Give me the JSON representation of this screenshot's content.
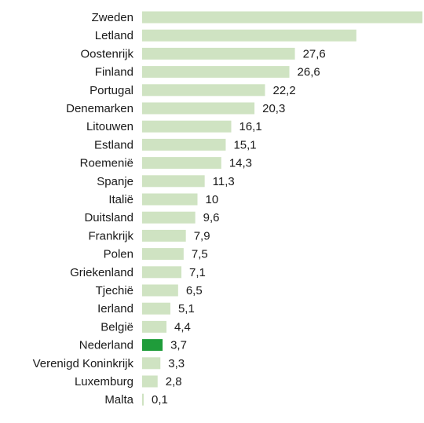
{
  "chart_data": {
    "type": "bar",
    "orientation": "horizontal",
    "categories": [
      "Zweden",
      "Letland",
      "Oostenrijk",
      "Finland",
      "Portugal",
      "Denemarken",
      "Litouwen",
      "Estland",
      "Roemenië",
      "Spanje",
      "Italië",
      "Duitsland",
      "Frankrijk",
      "Polen",
      "Griekenland",
      "Tjechië",
      "Ierland",
      "België",
      "Nederland",
      "Verenigd Koninkrijk",
      "Luxemburg",
      "Malta"
    ],
    "values": [
      52.6,
      38.7,
      27.6,
      26.6,
      22.2,
      20.3,
      16.1,
      15.1,
      14.3,
      11.3,
      10,
      9.6,
      7.9,
      7.5,
      7.1,
      6.5,
      5.1,
      4.4,
      3.7,
      3.3,
      2.8,
      0.1
    ],
    "value_labels": [
      "",
      "",
      "27,6",
      "26,6",
      "22,2",
      "20,3",
      "16,1",
      "15,1",
      "14,3",
      "11,3",
      "10",
      "9,6",
      "7,9",
      "7,5",
      "7,1",
      "6,5",
      "5,1",
      "4,4",
      "3,7",
      "3,3",
      "2,8",
      "0,1"
    ],
    "highlight": "Nederland",
    "colors": {
      "bar": "#cfe3c2",
      "highlight": "#1f9c3a",
      "text": "#1a1a1a"
    },
    "title": "",
    "xlabel": "",
    "ylabel": "",
    "grid": false,
    "legend": "none"
  }
}
